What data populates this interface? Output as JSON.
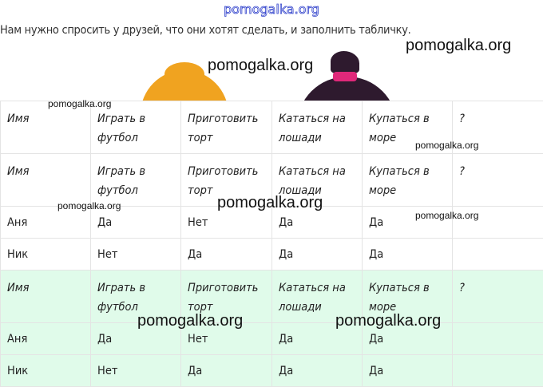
{
  "watermark_top": "pomogalka.org",
  "intro": "Нам нужно спросить у друзей, что они хотят сделать, и заполнить табличку.",
  "tables": [
    {
      "headers": [
        "Имя",
        "Играть в футбол",
        "Приготовить торт",
        "Кататься на лошади",
        "Купаться в море",
        "?"
      ],
      "rows": []
    },
    {
      "headers": [
        "Имя",
        "Играть в футбол",
        "Приготовить торт",
        "Кататься на лошади",
        "Купаться в море",
        "?"
      ],
      "rows": [
        [
          "Аня",
          "Да",
          "Нет",
          "Да",
          "Да",
          ""
        ],
        [
          "Ник",
          "Нет",
          "Да",
          "Да",
          "Да",
          ""
        ]
      ]
    },
    {
      "headers": [
        "Имя",
        "Играть в футбол",
        "Приготовить торт",
        "Кататься на лошади",
        "Купаться в море",
        "?"
      ],
      "rows": [
        [
          "Аня",
          "Да",
          "Нет",
          "Да",
          "Да",
          ""
        ],
        [
          "Ник",
          "Нет",
          "Да",
          "Да",
          "Да",
          ""
        ]
      ]
    }
  ],
  "watermarks": [
    "pomogalka.org",
    "pomogalka.org",
    "pomogalka.org",
    "pomogalka.org",
    "pomogalka.org",
    "pomogalka.org",
    "pomogalka.org",
    "pomogalka.org",
    "pomogalka.org"
  ]
}
